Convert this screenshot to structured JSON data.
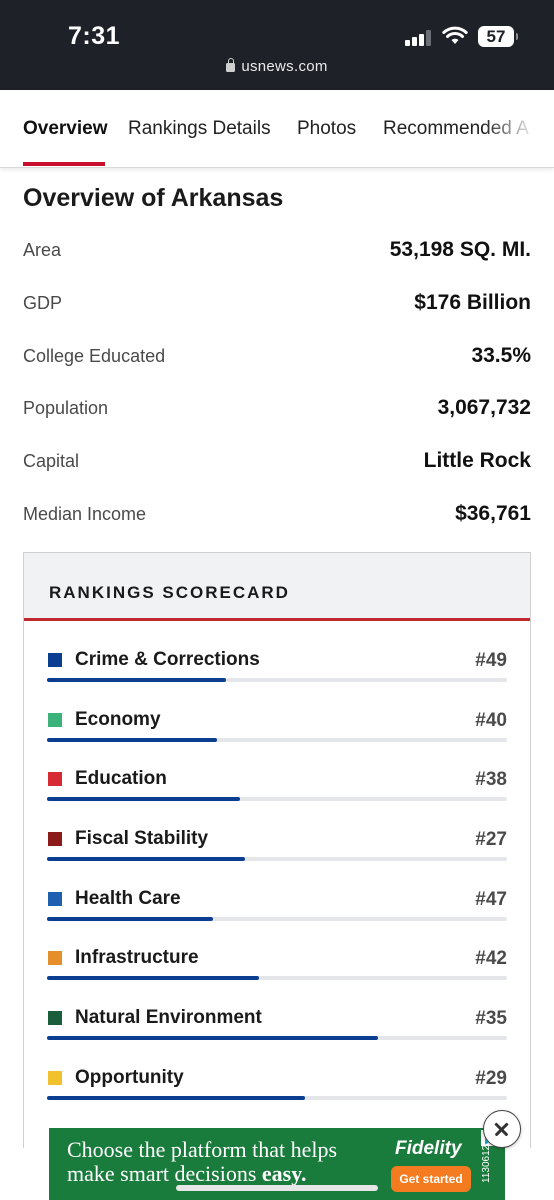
{
  "status_bar": {
    "time": "7:31",
    "battery": "57",
    "url": "usnews.com",
    "icons": [
      "signal-icon",
      "wifi-icon",
      "battery-icon",
      "lock-icon"
    ]
  },
  "tabs": [
    {
      "label": "Overview",
      "active": true
    },
    {
      "label": "Rankings Details",
      "active": false
    },
    {
      "label": "Photos",
      "active": false
    },
    {
      "label": "Recommended A",
      "active": false
    }
  ],
  "overview": {
    "title": "Overview of Arkansas",
    "facts": [
      {
        "label": "Area",
        "value": "53,198 SQ. MI."
      },
      {
        "label": "GDP",
        "value": "$176 Billion"
      },
      {
        "label": "College Educated",
        "value": "33.5%"
      },
      {
        "label": "Population",
        "value": "3,067,732"
      },
      {
        "label": "Capital",
        "value": "Little Rock"
      },
      {
        "label": "Median Income",
        "value": "$36,761"
      }
    ]
  },
  "scorecard": {
    "title": "RANKINGS SCORECARD",
    "bar_color": "#0b3d91",
    "items": [
      {
        "name": "Crime & Corrections",
        "rank": "#49",
        "color": "#0b3d91",
        "fill_fraction": 0.39
      },
      {
        "name": "Economy",
        "rank": "#40",
        "color": "#3cb37a",
        "fill_fraction": 0.37
      },
      {
        "name": "Education",
        "rank": "#38",
        "color": "#d62b35",
        "fill_fraction": 0.42
      },
      {
        "name": "Fiscal Stability",
        "rank": "#27",
        "color": "#8b1a1a",
        "fill_fraction": 0.43
      },
      {
        "name": "Health Care",
        "rank": "#47",
        "color": "#1f5fb0",
        "fill_fraction": 0.36
      },
      {
        "name": "Infrastructure",
        "rank": "#42",
        "color": "#e58f2a",
        "fill_fraction": 0.46
      },
      {
        "name": "Natural Environment",
        "rank": "#35",
        "color": "#1b5e3b",
        "fill_fraction": 0.72
      },
      {
        "name": "Opportunity",
        "rank": "#29",
        "color": "#f2c12e",
        "fill_fraction": 0.56
      }
    ]
  },
  "ad": {
    "line1": "Choose the platform that helps",
    "line2_regular": "make smart decisions ",
    "line2_bold": "easy.",
    "brand": "Fidelity",
    "cta": "Get started",
    "code": "1130612",
    "background": "#1a7c3c",
    "cta_color": "#f47b20"
  }
}
